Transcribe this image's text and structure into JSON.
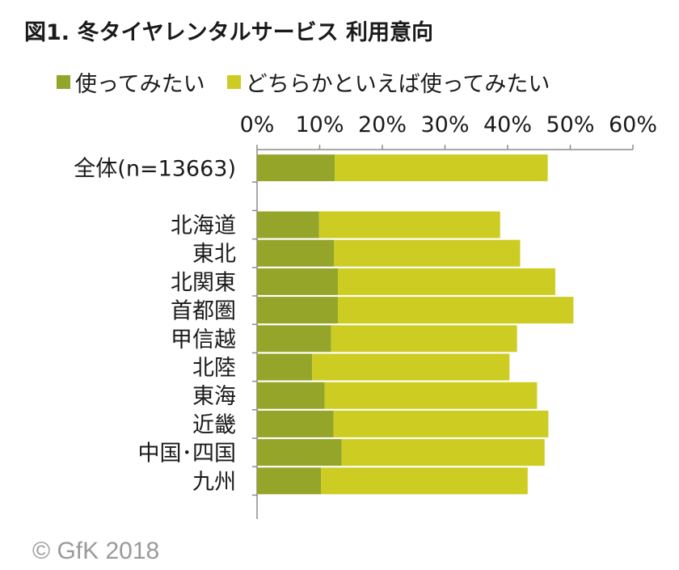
{
  "title": "図1. 冬タイヤレンタルサービス 利用意向",
  "copyright": "© GfK 2018",
  "colors": {
    "series1": "#94a52a",
    "series2": "#cccc22",
    "axis": "#8c8c8c"
  },
  "chart_data": {
    "type": "bar",
    "orientation": "horizontal",
    "stacked": true,
    "title": "図1. 冬タイヤレンタルサービス 利用意向",
    "xlabel": "",
    "ylabel": "",
    "xlim": [
      0,
      60
    ],
    "x_ticks": [
      "0%",
      "10%",
      "20%",
      "30%",
      "40%",
      "50%",
      "60%"
    ],
    "grid": false,
    "legend_position": "top",
    "categories": [
      "全体(n=13663)",
      "",
      "北海道",
      "東北",
      "北関東",
      "首都圏",
      "甲信越",
      "北陸",
      "東海",
      "近畿",
      "中国･四国",
      "九州"
    ],
    "series": [
      {
        "name": "使ってみたい",
        "values": [
          12.4,
          null,
          9.9,
          12.3,
          12.9,
          12.9,
          11.8,
          8.8,
          10.8,
          12.2,
          13.5,
          10.2
        ]
      },
      {
        "name": "どちらかといえば使ってみたい",
        "values": [
          34.0,
          null,
          28.9,
          29.7,
          34.7,
          37.6,
          29.7,
          31.5,
          33.9,
          34.3,
          32.4,
          33.0
        ]
      }
    ]
  }
}
